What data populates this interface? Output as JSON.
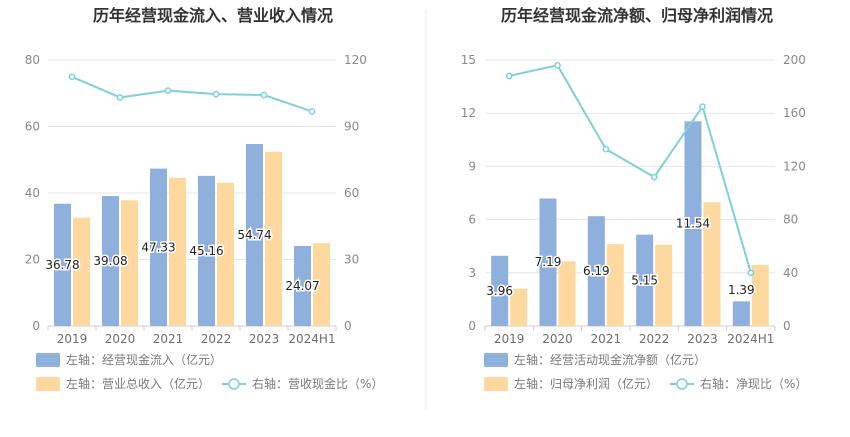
{
  "colors": {
    "bar_primary": "#8fafdc",
    "bar_secondary": "#fdd9a0",
    "line": "#7fd0d8",
    "grid": "#e6e6e6",
    "axis": "#cccccc",
    "divider": "#eeeeee"
  },
  "chart_data": [
    {
      "type": "bar",
      "title": "历年经营现金流入、营业收入情况",
      "categories": [
        "2019",
        "2020",
        "2021",
        "2022",
        "2023",
        "2024H1"
      ],
      "y_left_ticks": [
        "0",
        "20",
        "40",
        "60",
        "80"
      ],
      "y_right_ticks": [
        "0",
        "30",
        "60",
        "90",
        "120"
      ],
      "ylim_left": [
        0,
        80
      ],
      "ylim_right": [
        0,
        120
      ],
      "grid": true,
      "legend_placement": "bottom",
      "series": [
        {
          "name": "左轴：经营现金流入（亿元）",
          "kind": "bar",
          "axis": "left",
          "values": [
            36.78,
            39.08,
            47.33,
            45.16,
            54.74,
            24.07
          ],
          "labels": [
            "36.78",
            "39.08",
            "47.33",
            "45.16",
            "54.74",
            "24.07"
          ]
        },
        {
          "name": "左轴：营业总收入（亿元）",
          "kind": "bar",
          "axis": "left",
          "values": [
            32.6,
            37.8,
            44.6,
            43.1,
            52.4,
            24.9
          ]
        },
        {
          "name": "右轴：营收现金比（%）",
          "kind": "line",
          "axis": "right",
          "values": [
            112.4,
            103.1,
            106.2,
            104.6,
            104.2,
            96.8
          ]
        }
      ]
    },
    {
      "type": "bar",
      "title": "历年经营现金流净额、归母净利润情况",
      "categories": [
        "2019",
        "2020",
        "2021",
        "2022",
        "2023",
        "2024H1"
      ],
      "y_left_ticks": [
        "0",
        "3",
        "6",
        "9",
        "12",
        "15"
      ],
      "y_right_ticks": [
        "0",
        "40",
        "80",
        "120",
        "160",
        "200"
      ],
      "ylim_left": [
        0,
        15
      ],
      "ylim_right": [
        0,
        200
      ],
      "grid": true,
      "legend_placement": "bottom",
      "series": [
        {
          "name": "左轴：经营活动现金流净额（亿元）",
          "kind": "bar",
          "axis": "left",
          "values": [
            3.96,
            7.19,
            6.19,
            5.15,
            11.54,
            1.39
          ],
          "labels": [
            "3.96",
            "7.19",
            "6.19",
            "5.15",
            "11.54",
            "1.39"
          ]
        },
        {
          "name": "左轴：归母净利润（亿元）",
          "kind": "bar",
          "axis": "left",
          "values": [
            2.1,
            3.65,
            4.62,
            4.58,
            6.98,
            3.44
          ]
        },
        {
          "name": "右轴：净现比（%）",
          "kind": "line",
          "axis": "right",
          "values": [
            188,
            196,
            133,
            112,
            165,
            40
          ]
        }
      ]
    }
  ]
}
